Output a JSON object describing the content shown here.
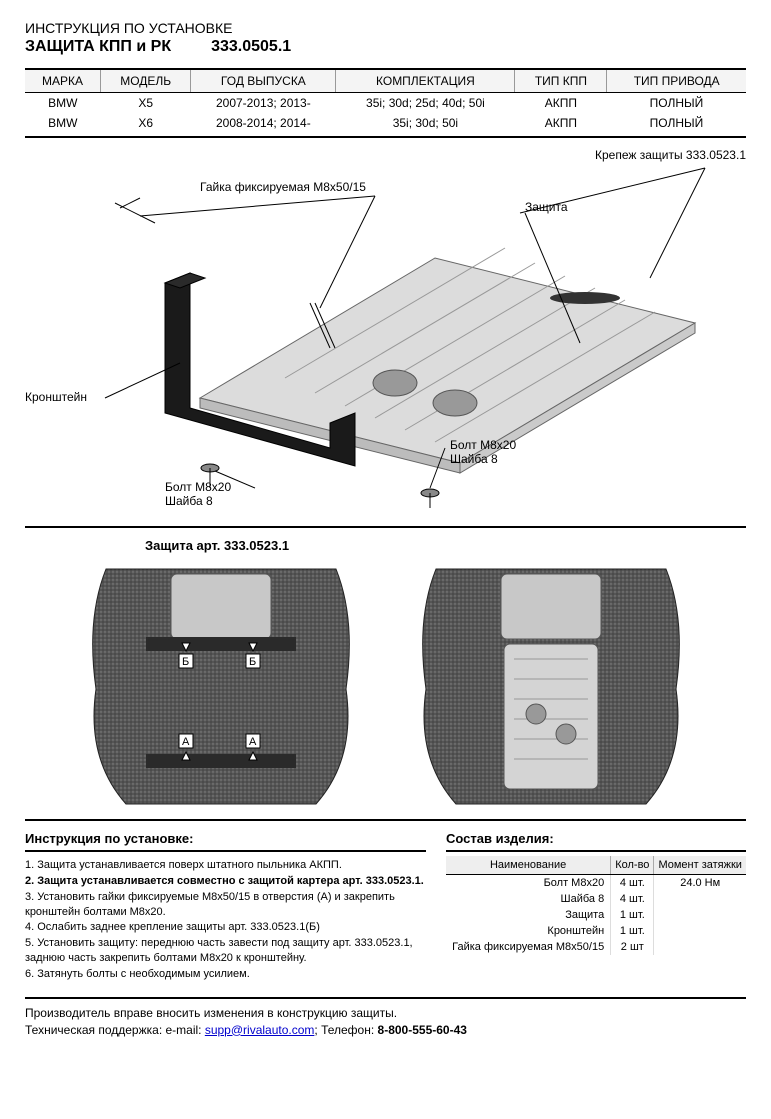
{
  "header": {
    "subtitle": "ИНСТРУКЦИЯ ПО УСТАНОВКЕ",
    "title": "ЗАЩИТА КПП и РК",
    "code": "333.0505.1"
  },
  "spec_table": {
    "columns": [
      "МАРКА",
      "МОДЕЛЬ",
      "ГОД ВЫПУСКА",
      "КОМПЛЕКТАЦИЯ",
      "ТИП КПП",
      "ТИП ПРИВОДА"
    ],
    "rows": [
      [
        "BMW",
        "X5",
        "2007-2013; 2013-",
        "35i; 30d; 25d; 40d; 50i",
        "АКПП",
        "ПОЛНЫЙ"
      ],
      [
        "BMW",
        "X6",
        "2008-2014; 2014-",
        "35i; 30d; 50i",
        "АКПП",
        "ПОЛНЫЙ"
      ]
    ]
  },
  "diagram": {
    "callouts": {
      "mounting": "Крепеж защиты 333.0523.1",
      "nut": "Гайка фиксируемая М8х50/15",
      "shield": "Защита",
      "bracket": "Кронштейн",
      "bolt1_l1": "Болт М8х20",
      "bolt1_l2": "Шайба 8",
      "bolt2_l1": "Болт М8х20",
      "bolt2_l2": "Шайба 8"
    },
    "colors": {
      "plate_fill": "#d8d8d8",
      "plate_stroke": "#555",
      "bracket_fill": "#1a1a1a",
      "line": "#000"
    }
  },
  "section_title": "Защита арт. 333.0523.1",
  "instructions": {
    "title": "Инструкция по установке:",
    "steps": [
      {
        "text": "Защита устанавливается поверх штатного пыльника АКПП.",
        "bold": false
      },
      {
        "text": "Защита устанавливается совместно с защитой картера арт. 333.0523.1.",
        "bold": true
      },
      {
        "text": "Установить гайки фиксируемые М8х50/15 в отверстия (А) и закрепить кронштейн болтами М8х20.",
        "bold": false
      },
      {
        "text": "Ослабить заднее крепление защиты арт. 333.0523.1(Б)",
        "bold": false
      },
      {
        "text": "Установить защиту: переднюю часть завести под защиту арт. 333.0523.1, заднюю часть закрепить болтами М8х20 к кронштейну.",
        "bold": false
      },
      {
        "text": "Затянуть болты с необходимым усилием.",
        "bold": false
      }
    ]
  },
  "bom": {
    "title": "Состав изделия:",
    "columns": [
      "Наименование",
      "Кол-во",
      "Момент затяжки"
    ],
    "rows": [
      {
        "name": "Болт М8х20",
        "qty": "4 шт.",
        "torque": "24.0 Нм"
      },
      {
        "name": "Шайба 8",
        "qty": "4 шт.",
        "torque": ""
      },
      {
        "name": "Защита",
        "qty": "1 шт.",
        "torque": ""
      },
      {
        "name": "Кронштейн",
        "qty": "1 шт.",
        "torque": ""
      },
      {
        "name": "Гайка фиксируемая М8х50/15",
        "qty": "2 шт",
        "torque": ""
      }
    ]
  },
  "footer": {
    "line1": "Производитель вправе вносить изменения в конструкцию защиты.",
    "line2_prefix": "Техническая поддержка:  e-mail: ",
    "email": "supp@rivalauto.com",
    "line2_mid": "; Телефон: ",
    "phone": "8-800-555-60-43"
  }
}
